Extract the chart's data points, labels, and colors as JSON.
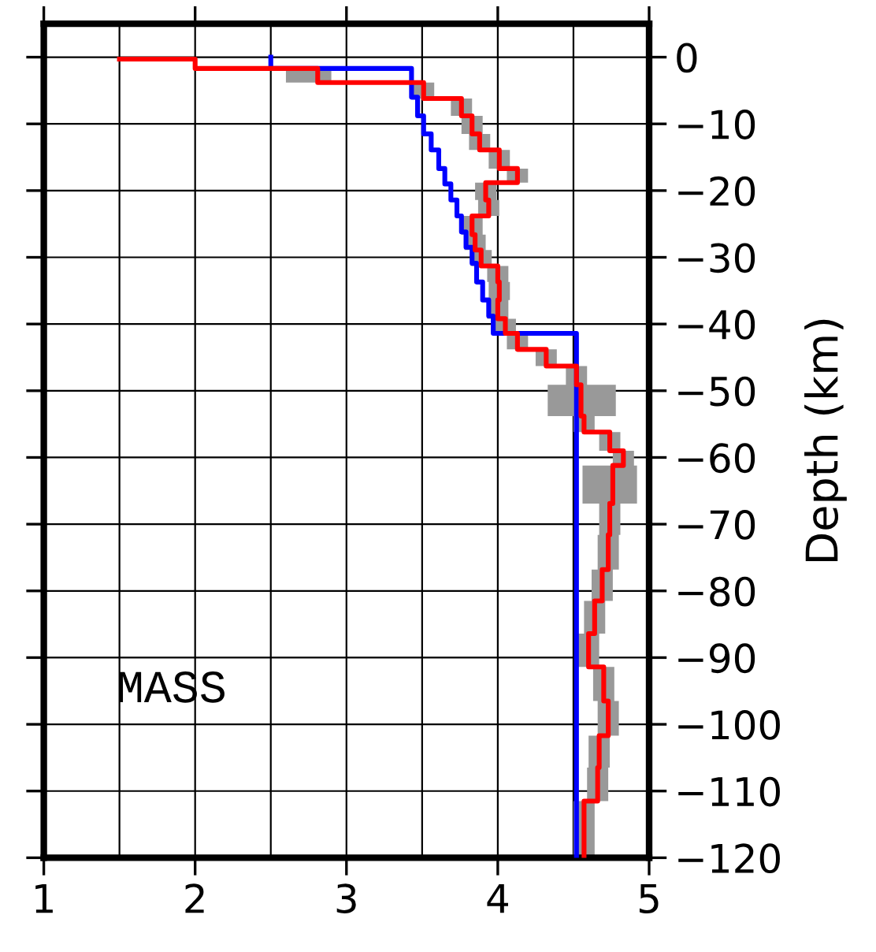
{
  "chart_data": {
    "type": "line",
    "orientation": "horizontal",
    "ylabel": "Depth (km)",
    "annotations": [
      "MASS"
    ],
    "xlim": [
      1,
      5
    ],
    "xticks": [
      1,
      2,
      3,
      4,
      5
    ],
    "ylim": [
      -120,
      5
    ],
    "yticks": [
      0,
      {
        "value": -10,
        "label": "−10"
      },
      {
        "value": -20,
        "label": "−20"
      },
      {
        "value": -30,
        "label": "−30"
      },
      {
        "value": -40,
        "label": "−40"
      },
      {
        "value": -50,
        "label": "−50"
      },
      {
        "value": -60,
        "label": "−60"
      },
      {
        "value": -70,
        "label": "−70"
      },
      {
        "value": -80,
        "label": "−80"
      },
      {
        "value": -90,
        "label": "−90"
      },
      {
        "value": -100,
        "label": "−100"
      },
      {
        "value": -110,
        "label": "−110"
      },
      {
        "value": -120,
        "label": "−120"
      }
    ],
    "grid": true,
    "marker": "none",
    "line_style": "solid",
    "series": [
      {
        "color": "#0000ff",
        "x": [
          0,
          -1.7,
          -1.7,
          -6.0,
          -6.0,
          -8.8,
          -8.8,
          -11.5,
          -11.5,
          -13.9,
          -13.9,
          -16.7,
          -16.7,
          -19.0,
          -19.0,
          -21.4,
          -21.4,
          -23.8,
          -23.8,
          -26.2,
          -26.2,
          -28.5,
          -28.5,
          -30.9,
          -30.9,
          -33.7,
          -33.7,
          -36.4,
          -36.4,
          -38.8,
          -38.8,
          -41.4,
          -41.4,
          -120
        ],
        "values": [
          2.5,
          2.5,
          3.43,
          3.43,
          3.47,
          3.47,
          3.51,
          3.51,
          3.56,
          3.56,
          3.61,
          3.61,
          3.65,
          3.65,
          3.69,
          3.69,
          3.73,
          3.73,
          3.76,
          3.76,
          3.79,
          3.79,
          3.83,
          3.83,
          3.86,
          3.86,
          3.9,
          3.9,
          3.94,
          3.94,
          3.97,
          3.97,
          4.52,
          4.52
        ]
      },
      {
        "color": "#ff0000",
        "x": [
          -0.3,
          -0.3,
          -1.7,
          -1.7,
          -3.8,
          -3.8,
          -6.2,
          -6.2,
          -8.8,
          -8.8,
          -11.5,
          -11.5,
          -13.9,
          -13.9,
          -16.7,
          -16.7,
          -18.8,
          -18.8,
          -21.4,
          -21.4,
          -23.8,
          -23.8,
          -26.6,
          -26.6,
          -28.9,
          -28.9,
          -31.3,
          -31.3,
          -33.7,
          -33.7,
          -36.4,
          -36.4,
          -39.2,
          -39.2,
          -41.4,
          -41.4,
          -43.8,
          -43.8,
          -46.3,
          -46.3,
          -49.1,
          -49.1,
          -53.8,
          -53.8,
          -56.2,
          -56.2,
          -59.0,
          -59.0,
          -61.2,
          -61.2,
          -66.9,
          -66.9,
          -71.6,
          -71.6,
          -76.8,
          -76.8,
          -81.5,
          -81.5,
          -86.4,
          -86.4,
          -91.4,
          -91.4,
          -96.5,
          -96.5,
          -101.7,
          -101.7,
          -106.5,
          -106.5,
          -111.5,
          -111.5,
          -120
        ],
        "values": [
          1.5,
          2.0,
          2.0,
          2.81,
          2.81,
          3.51,
          3.51,
          3.76,
          3.76,
          3.83,
          3.83,
          3.88,
          3.88,
          4.01,
          4.01,
          4.13,
          4.13,
          3.92,
          3.92,
          3.94,
          3.94,
          3.83,
          3.83,
          3.85,
          3.85,
          3.89,
          3.89,
          4.0,
          4.0,
          4.01,
          4.01,
          4.0,
          4.0,
          4.05,
          4.05,
          4.13,
          4.13,
          4.32,
          4.32,
          4.52,
          4.52,
          4.55,
          4.55,
          4.57,
          4.57,
          4.74,
          4.74,
          4.83,
          4.83,
          4.76,
          4.76,
          4.74,
          4.74,
          4.73,
          4.73,
          4.69,
          4.69,
          4.64,
          4.64,
          4.6,
          4.6,
          4.7,
          4.7,
          4.73,
          4.73,
          4.67,
          4.67,
          4.66,
          4.66,
          4.57,
          4.57
        ],
        "lower": [
          1.5,
          2.0,
          2.0,
          2.6,
          2.6,
          3.44,
          3.44,
          3.69,
          3.69,
          3.76,
          3.76,
          3.81,
          3.81,
          3.94,
          3.94,
          4.06,
          4.06,
          3.85,
          3.85,
          3.87,
          3.87,
          3.76,
          3.76,
          3.78,
          3.78,
          3.82,
          3.82,
          3.93,
          3.93,
          3.94,
          3.94,
          3.93,
          3.93,
          3.98,
          3.98,
          4.06,
          4.06,
          4.25,
          4.25,
          4.45,
          4.45,
          4.33,
          4.33,
          4.5,
          4.5,
          4.67,
          4.67,
          4.76,
          4.76,
          4.56,
          4.56,
          4.67,
          4.67,
          4.66,
          4.66,
          4.62,
          4.62,
          4.57,
          4.57,
          4.53,
          4.53,
          4.63,
          4.63,
          4.66,
          4.66,
          4.6,
          4.6,
          4.59,
          4.59,
          4.5,
          4.5
        ],
        "upper": [
          1.5,
          2.0,
          2.0,
          2.9,
          2.9,
          3.58,
          3.58,
          3.83,
          3.83,
          3.9,
          3.9,
          3.95,
          3.95,
          4.08,
          4.08,
          4.2,
          4.2,
          3.99,
          3.99,
          4.01,
          4.01,
          3.9,
          3.9,
          3.92,
          3.92,
          3.96,
          3.96,
          4.07,
          4.07,
          4.08,
          4.08,
          4.07,
          4.07,
          4.12,
          4.12,
          4.2,
          4.2,
          4.39,
          4.39,
          4.59,
          4.59,
          4.78,
          4.78,
          4.64,
          4.64,
          4.81,
          4.81,
          4.9,
          4.9,
          4.92,
          4.92,
          4.81,
          4.81,
          4.8,
          4.8,
          4.76,
          4.76,
          4.71,
          4.71,
          4.67,
          4.67,
          4.77,
          4.77,
          4.8,
          4.8,
          4.74,
          4.74,
          4.73,
          4.73,
          4.64,
          4.64
        ]
      }
    ]
  }
}
